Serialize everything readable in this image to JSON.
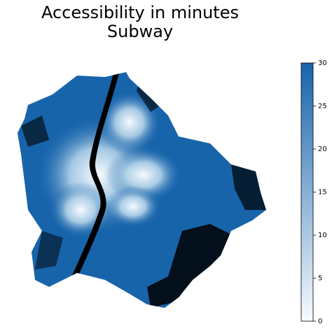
{
  "map": {
    "title": [
      "Accessibility in minutes",
      "Subway"
    ],
    "colorbar": {
      "lim": [
        0,
        30
      ],
      "ticks": [
        0,
        5,
        10,
        15,
        20,
        25,
        30
      ],
      "colors": [
        "#f7fbff",
        "#1764ab"
      ]
    }
  }
}
